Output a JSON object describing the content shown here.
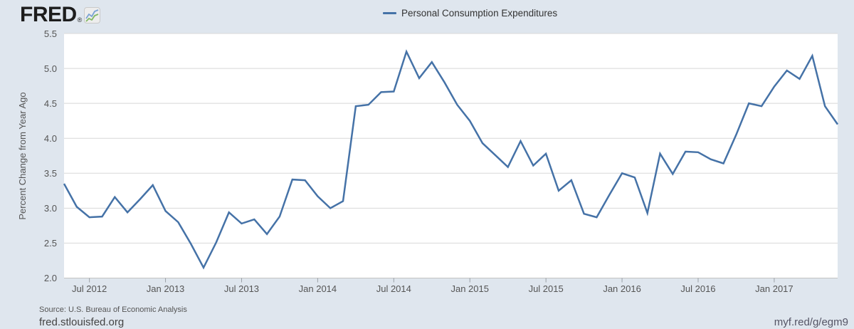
{
  "header": {
    "logo_text": "FRED",
    "logo_registered": "®"
  },
  "legend": {
    "label": "Personal Consumption Expenditures",
    "line_color": "#4572a7"
  },
  "chart_data": {
    "type": "line",
    "title": "Personal Consumption Expenditures",
    "ylabel": "Percent Change from Year Ago",
    "ylim": [
      2.0,
      5.5
    ],
    "grid": true,
    "legend_position": "top-center",
    "line_color": "#4572a7",
    "y_ticks": [
      2.0,
      2.5,
      3.0,
      3.5,
      4.0,
      4.5,
      5.0,
      5.5
    ],
    "x_ticks": [
      {
        "label": "Jul 2012",
        "index": 2
      },
      {
        "label": "Jan 2013",
        "index": 8
      },
      {
        "label": "Jul 2013",
        "index": 14
      },
      {
        "label": "Jan 2014",
        "index": 20
      },
      {
        "label": "Jul 2014",
        "index": 26
      },
      {
        "label": "Jan 2015",
        "index": 32
      },
      {
        "label": "Jul 2015",
        "index": 38
      },
      {
        "label": "Jan 2016",
        "index": 44
      },
      {
        "label": "Jul 2016",
        "index": 50
      },
      {
        "label": "Jan 2017",
        "index": 56
      }
    ],
    "x": [
      "2012-05",
      "2012-06",
      "2012-07",
      "2012-08",
      "2012-09",
      "2012-10",
      "2012-11",
      "2012-12",
      "2013-01",
      "2013-02",
      "2013-03",
      "2013-04",
      "2013-05",
      "2013-06",
      "2013-07",
      "2013-08",
      "2013-09",
      "2013-10",
      "2013-11",
      "2013-12",
      "2014-01",
      "2014-02",
      "2014-03",
      "2014-04",
      "2014-05",
      "2014-06",
      "2014-07",
      "2014-08",
      "2014-09",
      "2014-10",
      "2014-11",
      "2014-12",
      "2015-01",
      "2015-02",
      "2015-03",
      "2015-04",
      "2015-05",
      "2015-06",
      "2015-07",
      "2015-08",
      "2015-09",
      "2015-10",
      "2015-11",
      "2015-12",
      "2016-01",
      "2016-02",
      "2016-03",
      "2016-04",
      "2016-05",
      "2016-06",
      "2016-07",
      "2016-08",
      "2016-09",
      "2016-10",
      "2016-11",
      "2016-12",
      "2017-01",
      "2017-02",
      "2017-03",
      "2017-04",
      "2017-05",
      "2017-06"
    ],
    "values": [
      3.35,
      3.02,
      2.87,
      2.88,
      3.16,
      2.94,
      3.13,
      3.33,
      2.96,
      2.8,
      2.49,
      2.15,
      2.51,
      2.94,
      2.78,
      2.84,
      2.63,
      2.88,
      3.41,
      3.4,
      3.17,
      3.0,
      3.1,
      4.46,
      4.48,
      4.66,
      4.67,
      5.24,
      4.86,
      5.09,
      4.8,
      4.48,
      4.25,
      3.93,
      3.76,
      3.59,
      3.96,
      3.61,
      3.78,
      3.25,
      3.4,
      2.92,
      2.87,
      3.19,
      3.5,
      3.44,
      2.93,
      3.78,
      3.49,
      3.81,
      3.8,
      3.7,
      3.64,
      4.05,
      4.5,
      4.46,
      4.74,
      4.97,
      4.85,
      5.18,
      4.46,
      4.2
    ]
  },
  "colors": {
    "page_background": "#dfe6ee",
    "plot_background": "#ffffff",
    "gridline": "#d8d8d8",
    "axis_line": "#c2c2c2",
    "tick_mark": "#9aa0a6",
    "series_line": "#4572a7"
  },
  "source": {
    "text": "Source: U.S. Bureau of Economic Analysis"
  },
  "footer": {
    "left": "fred.stlouisfed.org",
    "right": "myf.red/g/egm9"
  }
}
